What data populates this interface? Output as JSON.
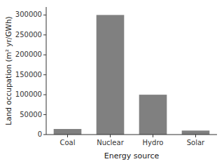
{
  "chart_data": {
    "type": "bar",
    "categories": [
      "Coal",
      "Nuclear",
      "Hydro",
      "Solar"
    ],
    "values": [
      14000,
      300000,
      100000,
      10000
    ],
    "color": "#808080",
    "xlabel": "Energy source",
    "ylabel": "Land occupation (m² yr/GWh)",
    "ylim": [
      0,
      320000
    ],
    "yticks": [
      0,
      50000,
      100000,
      150000,
      200000,
      250000,
      300000
    ],
    "grid": false
  }
}
